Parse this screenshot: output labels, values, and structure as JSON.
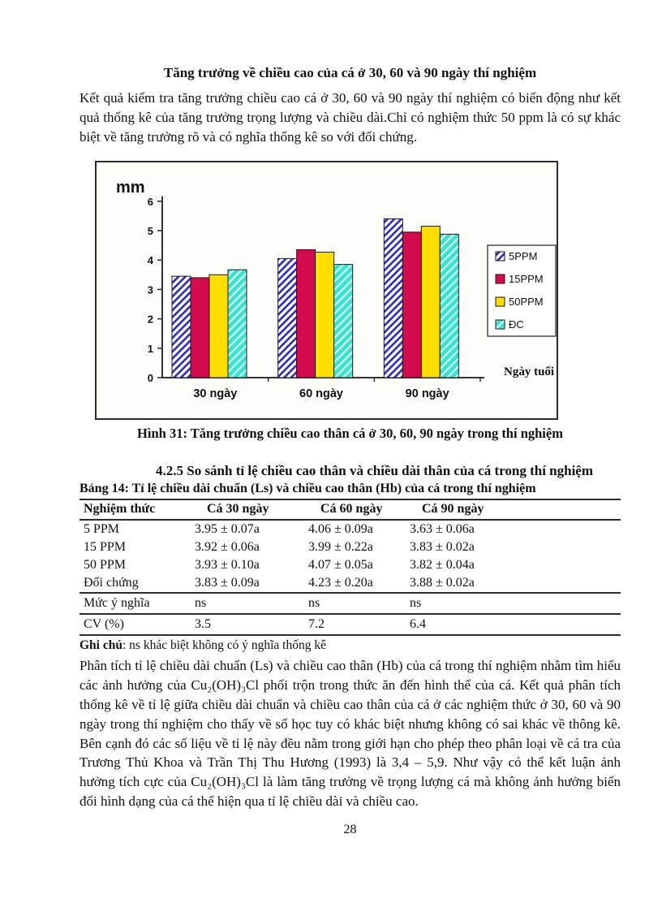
{
  "page": {
    "number": "28"
  },
  "doc": {
    "title": "Tăng trưởng về chiều cao của cá ở 30, 60 và 90 ngày thí nghiệm",
    "para1": "Kết quả kiểm tra tăng trưởng chiều cao cá ở 30, 60 và 90 ngày thí nghiệm có biến động như kết quả thống kê của tăng trưởng trọng lượng và chiều dài.Chỉ có nghiệm thức 50 ppm là có sự khác biệt về tăng trưởng rõ  và có  nghĩa thống kê so với đối chứng.",
    "figure_caption": "Hình 31: Tăng trưởng chiều cao thân cá ở  30, 60, 90 ngày trong thí nghiệm",
    "section_heading": "4.2.5 So sánh tỉ lệ chiều cao thân và chiều dài thân của cá trong thí nghiệm",
    "table_caption": "Bảng 14: Tỉ lệ chiều dài chuẩn (Ls) và chiều cao thân (Hb) của cá trong thí nghiệm",
    "note_label": "Ghi chú",
    "note_text": ":  ns khác biệt không có ý nghĩa thống kê",
    "para2": "Phân tích tỉ lệ chiều dài chuẩn (Ls) và chiều cao thân (Hb) của cá trong thí nghiệm nhằm tìm hiểu các ảnh hưởng  của Cu₂(OH)₃Cl phối trộn trong thức ăn  đến hình thể của cá. Kết quả phân tích thống kê về tỉ lệ giữa chiều dài chuẩn và chiều cao thân của cá ở các nghiệm thức ở  30, 60 và 90 ngày trong thí nghiệm cho thấy  về số học tuy có khác biệt nhưng không có sai khác về thông kê. Bên cạnh đó các số liệu về tỉ lệ này đều nằm trong giới hạn  cho phép theo  phân loại về cá tra của Trương Thủ Khoa và Trần Thị Thu Hương (1993) là 3,4 – 5,9. Như vậy có thể kết luận ảnh hưởng tích cực của Cu₂(OH)₃Cl là làm tăng trưởng về trọng lượng cá mà không ảnh hưởng biến đổi hình dạng của cá thể hiện qua tỉ lệ chiều dài và chiều cao."
  },
  "table": {
    "headers": [
      "Nghiệm thức",
      "Cá  30 ngày",
      "Cá  60 ngày",
      "Cá  90 ngày"
    ],
    "rows": [
      [
        "5 PPM",
        "3.95 ± 0.07a",
        "4.06 ± 0.09a",
        "3.63 ± 0.06a"
      ],
      [
        "15 PPM",
        "3.92 ± 0.06a",
        "3.99 ± 0.22a",
        "3.83 ± 0.02a"
      ],
      [
        "50 PPM",
        "3.93 ± 0.10a",
        "4.07 ± 0.05a",
        "3.82 ± 0.04a"
      ],
      [
        "Đối chứng",
        "3.83 ± 0.09a",
        "4.23 ± 0.20a",
        "3.88 ± 0.02a"
      ]
    ],
    "stat_rows": [
      [
        "Mức ý nghĩa",
        "ns",
        "ns",
        "ns"
      ],
      [
        "CV (%)",
        "3.5",
        "7.2",
        "6.4"
      ]
    ]
  },
  "chart_data": {
    "type": "bar",
    "title": "",
    "ylabel": "mm",
    "xlabel": "Ngày tuổi",
    "categories": [
      "30 ngày",
      "60 ngày",
      "90 ngày"
    ],
    "series": [
      {
        "name": "5PPM",
        "values": [
          3.45,
          4.05,
          5.4
        ],
        "fill": "hatch-blue",
        "colors": {
          "stripe": "#2b2bb4",
          "background": "#ffffff"
        }
      },
      {
        "name": "15PPM",
        "values": [
          3.4,
          4.35,
          4.95
        ],
        "fill": "#d40a4e",
        "colors": {
          "solid": "#d40a4e"
        }
      },
      {
        "name": "50PPM",
        "values": [
          3.5,
          4.27,
          5.15
        ],
        "fill": "#ffdf00",
        "colors": {
          "solid": "#ffdf00"
        }
      },
      {
        "name": "ĐC",
        "values": [
          3.67,
          3.85,
          4.88
        ],
        "fill": "hatch-cyan",
        "colors": {
          "stripe": "#ccfbf4",
          "background": "#3fe0d0"
        }
      }
    ],
    "ylim": [
      0,
      6
    ],
    "yticks": [
      0,
      1,
      2,
      3,
      4,
      5,
      6
    ],
    "legend_position": "right",
    "grid": false
  }
}
